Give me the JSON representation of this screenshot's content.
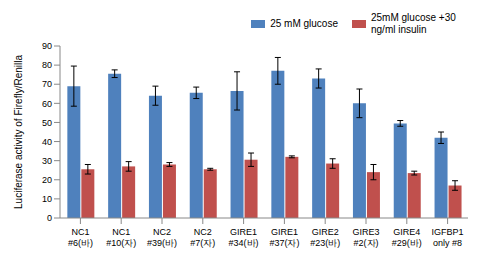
{
  "chart_data": {
    "type": "bar",
    "y_label": "Luciferase activity of Firefly/Renilla",
    "categories": [
      "NC1 #6(바)",
      "NC1 #10(자)",
      "NC2 #39(바)",
      "NC2 #7(자)",
      "GIRE1 #34(바)",
      "GIRE1 #37(자)",
      "GIRE2 #23(바)",
      "GIRE3 #2(자)",
      "GIRE4 #29(바)",
      "IGFBP1 only #8"
    ],
    "series": [
      {
        "name": "25 mM glucose",
        "color": "#4f81bd",
        "values": [
          69,
          75.5,
          64,
          65.5,
          66.5,
          77,
          73,
          60,
          49.5,
          42
        ],
        "errors": [
          10.5,
          2,
          5,
          3,
          10,
          7,
          5,
          7.5,
          1.5,
          3
        ]
      },
      {
        "name": "25mM glucose +30 ng/ml insulin",
        "color": "#c0504d",
        "values": [
          25.5,
          27,
          28,
          25.5,
          30.5,
          32,
          28.5,
          24,
          23.5,
          17
        ],
        "errors": [
          2.5,
          2.5,
          1,
          0.5,
          3.5,
          0.5,
          2.5,
          4,
          1,
          2.5
        ]
      }
    ],
    "ylim": [
      0,
      90
    ],
    "yticks": [
      0,
      10,
      20,
      30,
      40,
      50,
      60,
      70,
      80,
      90
    ],
    "grid": false,
    "legend": "top right"
  }
}
